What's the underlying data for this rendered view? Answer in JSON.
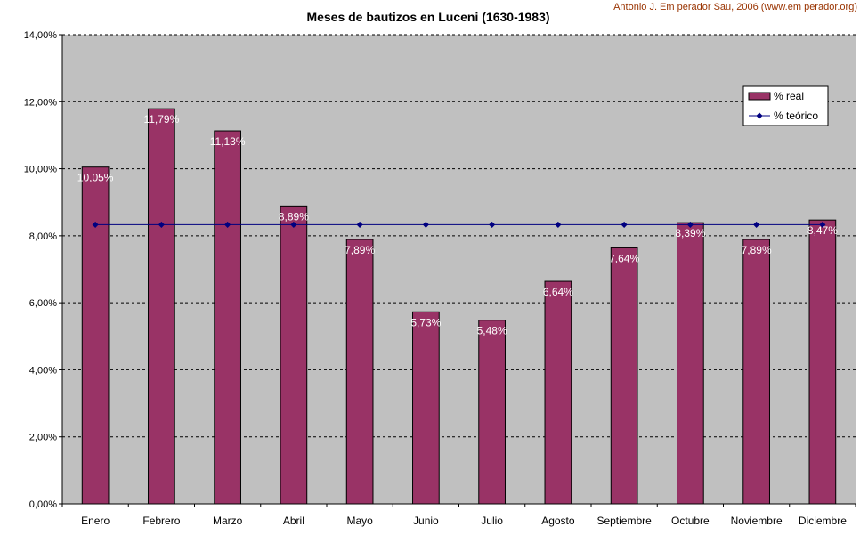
{
  "credit": "Antonio J. Em perador Sau, 2006 (www.em perador.org)",
  "colors": {
    "bar": "#993366",
    "line": "#000080",
    "plot_bg": "#c0c0c0",
    "credit": "#993300"
  },
  "chart_data": {
    "type": "bar",
    "title": "Meses de bautizos en Luceni (1630-1983)",
    "xlabel": "",
    "ylabel": "",
    "ylim": [
      0,
      14
    ],
    "yticks": [
      0,
      2,
      4,
      6,
      8,
      10,
      12,
      14
    ],
    "ytick_labels": [
      "0,00%",
      "2,00%",
      "4,00%",
      "6,00%",
      "8,00%",
      "10,00%",
      "12,00%",
      "14,00%"
    ],
    "grid": true,
    "legend_position": "top-right",
    "categories": [
      "Enero",
      "Febrero",
      "Marzo",
      "Abril",
      "Mayo",
      "Junio",
      "Julio",
      "Agosto",
      "Septiembre",
      "Octubre",
      "Noviembre",
      "Diciembre"
    ],
    "series": [
      {
        "name": "% real",
        "type": "bar",
        "values": [
          10.05,
          11.79,
          11.13,
          8.89,
          7.89,
          5.73,
          5.48,
          6.64,
          7.64,
          8.39,
          7.89,
          8.47
        ],
        "labels": [
          "10,05%",
          "11,79%",
          "11,13%",
          "8,89%",
          "7,89%",
          "5,73%",
          "5,48%",
          "6,64%",
          "7,64%",
          "8,39%",
          "7,89%",
          "8,47%"
        ]
      },
      {
        "name": "% teórico",
        "type": "line",
        "values": [
          8.33,
          8.33,
          8.33,
          8.33,
          8.33,
          8.33,
          8.33,
          8.33,
          8.33,
          8.33,
          8.33,
          8.33
        ]
      }
    ]
  }
}
